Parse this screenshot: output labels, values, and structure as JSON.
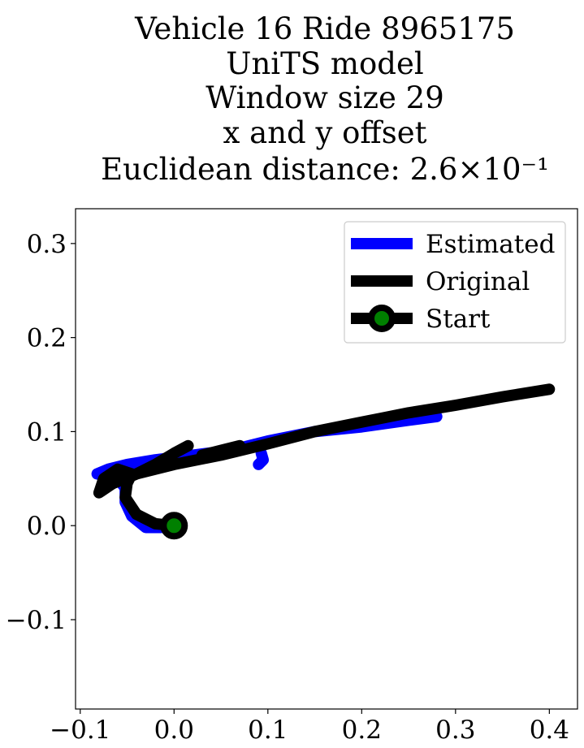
{
  "chart_data": {
    "type": "line",
    "title_lines": [
      "Vehicle 16 Ride 8965175",
      "UniTS model",
      "Window size 29",
      "x and y offset",
      "Euclidean distance: 2.6×10⁻¹"
    ],
    "xlim": [
      -0.105,
      0.43
    ],
    "ylim": [
      -0.195,
      0.337
    ],
    "x_ticks": [
      -0.1,
      0.0,
      0.1,
      0.2,
      0.3,
      0.4
    ],
    "x_tick_labels": [
      "−0.1",
      "0.0",
      "0.1",
      "0.2",
      "0.3",
      "0.4"
    ],
    "y_ticks": [
      -0.1,
      0.0,
      0.1,
      0.2,
      0.3
    ],
    "y_tick_labels": [
      "−0.1",
      "0.0",
      "0.1",
      "0.2",
      "0.3"
    ],
    "grid": false,
    "legend_position": "top-right",
    "series": [
      {
        "name": "Estimated",
        "color": "#0000ff",
        "x": [
          0.0,
          -0.015,
          -0.03,
          -0.045,
          -0.052,
          -0.052,
          -0.06,
          -0.07,
          -0.082,
          -0.07,
          -0.05,
          -0.02,
          0.02,
          0.06,
          0.1,
          0.15,
          0.2,
          0.25,
          0.28
        ],
        "y": [
          0.0,
          -0.002,
          -0.002,
          0.01,
          0.025,
          0.04,
          0.05,
          0.052,
          0.055,
          0.06,
          0.065,
          0.07,
          0.075,
          0.08,
          0.09,
          0.1,
          0.105,
          0.112,
          0.116
        ]
      },
      {
        "name": "Estimated",
        "color": "#0000ff",
        "x": [
          0.09,
          0.095,
          0.093
        ],
        "y": [
          0.065,
          0.07,
          0.077
        ]
      },
      {
        "name": "Original",
        "color": "#000000",
        "x": [
          0.0,
          -0.02,
          -0.04,
          -0.052,
          -0.05,
          -0.045,
          -0.06,
          -0.075,
          -0.08,
          -0.065,
          -0.04,
          -0.02,
          0.0,
          0.015
        ],
        "y": [
          0.0,
          0.002,
          0.012,
          0.03,
          0.045,
          0.055,
          0.06,
          0.05,
          0.035,
          0.045,
          0.055,
          0.065,
          0.077,
          0.085
        ]
      },
      {
        "name": "Original",
        "color": "#000000",
        "x": [
          -0.065,
          -0.04,
          0.0,
          0.05,
          0.1,
          0.15,
          0.2,
          0.25,
          0.3,
          0.35,
          0.4
        ],
        "y": [
          0.045,
          0.055,
          0.065,
          0.075,
          0.087,
          0.1,
          0.11,
          0.12,
          0.128,
          0.137,
          0.145
        ]
      },
      {
        "name": "Original",
        "color": "#000000",
        "x": [
          0.03,
          0.05,
          0.07
        ],
        "y": [
          0.075,
          0.08,
          0.085
        ]
      }
    ],
    "start": {
      "name": "Start",
      "x": 0.0,
      "y": 0.0,
      "face_color": "#008000",
      "edge_color": "#000000"
    },
    "legend": [
      {
        "label": "Estimated",
        "color": "#0000ff",
        "marker": false
      },
      {
        "label": "Original",
        "color": "#000000",
        "marker": false
      },
      {
        "label": "Start",
        "color": "#000000",
        "marker": true,
        "marker_face": "#008000"
      }
    ]
  }
}
